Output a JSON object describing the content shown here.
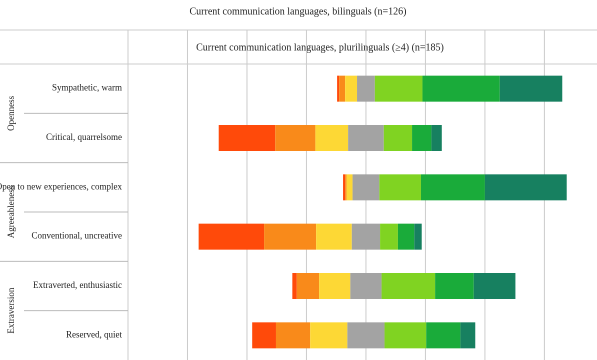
{
  "chart_data": {
    "type": "diverging_bar",
    "title": "Current communication languages, bilinguals (n=126)",
    "subtitle": "Current communication languages, plurilinguals (≥4) (n=185)",
    "groups": [
      "Openness",
      "Agreeableness",
      "Extraversion"
    ],
    "categories": [
      "Sympathetic, warm",
      "Critical, quarrelsome",
      "Open to new experiences, complex",
      "Conventional, uncreative",
      "Extraverted, enthusiastic",
      "Reserved, quiet"
    ],
    "neutral_series": 3,
    "series": [
      {
        "color": "#ff4a0a",
        "values": [
          0.7,
          19,
          0.7,
          22,
          1.5,
          8
        ]
      },
      {
        "color": "#f98a1a",
        "values": [
          2,
          13.5,
          0.5,
          17.5,
          7.5,
          11.5
        ]
      },
      {
        "color": "#fdd835",
        "values": [
          4,
          11,
          2,
          12,
          10.5,
          12.5
        ]
      },
      {
        "color": "#a3a3a3",
        "values": [
          6,
          12,
          9,
          9.5,
          10.5,
          12.5
        ]
      },
      {
        "color": "#80d322",
        "values": [
          16,
          9.5,
          14,
          6,
          18,
          14
        ]
      },
      {
        "color": "#1aab3a",
        "values": [
          26,
          6.5,
          21.5,
          5.5,
          13,
          11.5
        ]
      },
      {
        "color": "#178060",
        "values": [
          21,
          3.5,
          27.5,
          2.5,
          14,
          5
        ]
      }
    ],
    "xlim": [
      -80,
      76
    ],
    "xticks": [
      -80,
      -60,
      -40,
      -20,
      0,
      20,
      40,
      60
    ],
    "grid": true
  }
}
